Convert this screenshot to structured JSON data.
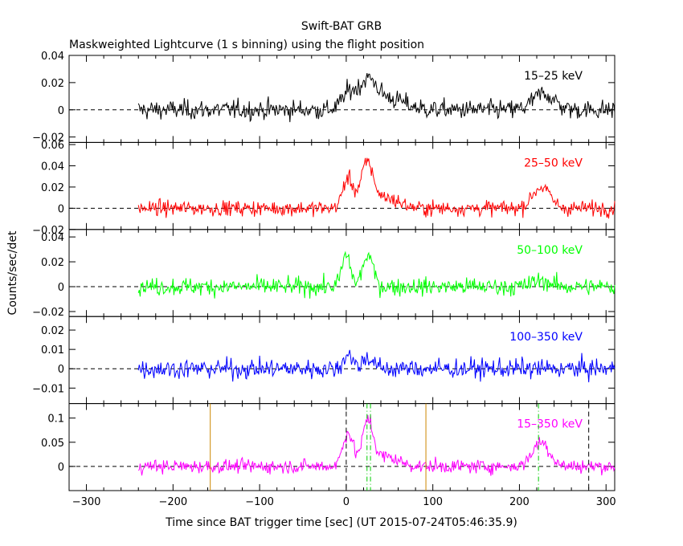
{
  "chart_data": {
    "type": "line",
    "title": "Swift-BAT GRB",
    "subtitle": "Maskweighted Lightcurve (1 s binning) using the flight position",
    "xlabel": "Time since BAT trigger time [sec] (UT 2015-07-24T05:46:35.9)",
    "ylabel": "Counts/sec/det",
    "xlim": [
      -320,
      310
    ],
    "x_ticks": [
      -300,
      -200,
      -100,
      0,
      100,
      200,
      300
    ],
    "x_tick_labels": [
      "−300",
      "−200",
      "−100",
      "0",
      "100",
      "200",
      "300"
    ],
    "data_range": [
      -240,
      310
    ],
    "panels": [
      {
        "label": "15–25 keV",
        "color": "#000000",
        "ylim": [
          -0.024,
          0.04
        ],
        "y_ticks": [
          -0.02,
          0,
          0.02,
          0.04
        ],
        "y_tick_labels": [
          "−0.02",
          "0",
          "0.02",
          "0.04"
        ],
        "noise": 0.007,
        "peaks": [
          {
            "t": 3,
            "amp": 0.012,
            "w": 8
          },
          {
            "t": 25,
            "amp": 0.02,
            "w": 10
          },
          {
            "t": 50,
            "amp": 0.008,
            "w": 18
          },
          {
            "t": 228,
            "amp": 0.012,
            "w": 12
          }
        ]
      },
      {
        "label": "25–50 keV",
        "color": "#ff0000",
        "ylim": [
          -0.02,
          0.062
        ],
        "y_ticks": [
          -0.02,
          0,
          0.02,
          0.04,
          0.06
        ],
        "y_tick_labels": [
          "−0.02",
          "0",
          "0.02",
          "0.04",
          "0.06"
        ],
        "noise": 0.007,
        "peaks": [
          {
            "t": 2,
            "amp": 0.028,
            "w": 6
          },
          {
            "t": 24,
            "amp": 0.04,
            "w": 7
          },
          {
            "t": 45,
            "amp": 0.01,
            "w": 15
          },
          {
            "t": 225,
            "amp": 0.02,
            "w": 10
          }
        ]
      },
      {
        "label": "50–100 keV",
        "color": "#00ff00",
        "ylim": [
          -0.024,
          0.046
        ],
        "y_ticks": [
          -0.02,
          0,
          0.02,
          0.04
        ],
        "y_tick_labels": [
          "−0.02",
          "0",
          "0.02",
          "0.04"
        ],
        "noise": 0.007,
        "peaks": [
          {
            "t": 0,
            "amp": 0.025,
            "w": 5
          },
          {
            "t": 25,
            "amp": 0.025,
            "w": 6
          },
          {
            "t": 225,
            "amp": 0.005,
            "w": 10
          }
        ]
      },
      {
        "label": "100–350 keV",
        "color": "#0000ff",
        "ylim": [
          -0.018,
          0.027
        ],
        "y_ticks": [
          -0.01,
          0,
          0.01,
          0.02
        ],
        "y_tick_labels": [
          "−0.01",
          "0",
          "0.01",
          "0.02"
        ],
        "noise": 0.005,
        "peaks": [
          {
            "t": 2,
            "amp": 0.008,
            "w": 5
          },
          {
            "t": 25,
            "amp": 0.006,
            "w": 6
          }
        ]
      },
      {
        "label": "15–350 keV",
        "color": "#ff00ff",
        "ylim": [
          -0.05,
          0.13
        ],
        "y_ticks": [
          0,
          0.05,
          0.1
        ],
        "y_tick_labels": [
          "0",
          "0.05",
          "0.1"
        ],
        "noise": 0.014,
        "peaks": [
          {
            "t": 2,
            "amp": 0.07,
            "w": 6
          },
          {
            "t": 25,
            "amp": 0.09,
            "w": 6
          },
          {
            "t": 45,
            "amp": 0.02,
            "w": 15
          },
          {
            "t": 225,
            "amp": 0.05,
            "w": 10
          }
        ],
        "markers": [
          {
            "t": -157,
            "color": "#cc8800",
            "style": "solid"
          },
          {
            "t": 92,
            "color": "#cc8800",
            "style": "solid"
          },
          {
            "t": 0,
            "color": "#000000",
            "style": "dashed"
          },
          {
            "t": 280,
            "color": "#000000",
            "style": "dashed"
          },
          {
            "t": 24,
            "color": "#00cc00",
            "style": "dashdot"
          },
          {
            "t": 28,
            "color": "#00cc00",
            "style": "dashdot"
          },
          {
            "t": 222,
            "color": "#00cc00",
            "style": "dashdot"
          }
        ]
      }
    ]
  }
}
